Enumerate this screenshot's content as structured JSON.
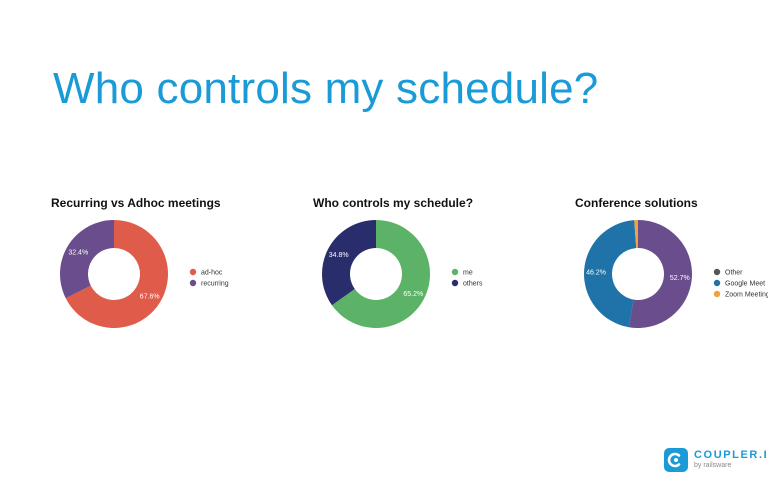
{
  "headline": "Who controls my schedule?",
  "chart_data": [
    {
      "type": "pie",
      "title": "Recurring vs Adhoc meetings",
      "donut": true,
      "legend_position": "right",
      "slices": [
        {
          "label": "ad-hoc",
          "value": 67.6,
          "display": "67.6%",
          "color": "#e05c4a"
        },
        {
          "label": "recurring",
          "value": 32.4,
          "display": "32.4%",
          "color": "#6a4d8c"
        }
      ]
    },
    {
      "type": "pie",
      "title": "Who controls my schedule?",
      "donut": true,
      "legend_position": "right",
      "slices": [
        {
          "label": "me",
          "value": 65.2,
          "display": "65.2%",
          "color": "#5cb367"
        },
        {
          "label": "others",
          "value": 34.8,
          "display": "34.8%",
          "color": "#2a2d6b"
        }
      ]
    },
    {
      "type": "pie",
      "title": "Conference solutions",
      "donut": true,
      "legend_position": "right",
      "slices": [
        {
          "label": "Other",
          "value": 52.7,
          "display": "52.7%",
          "color": "#6a4d8c"
        },
        {
          "label": "Google Meet",
          "value": 46.2,
          "display": "46.2%",
          "color": "#1f73a8"
        },
        {
          "label": "Zoom Meeting",
          "value": 1.1,
          "display": "",
          "color": "#f0a33a"
        }
      ]
    }
  ],
  "legend_swatch_colors": [
    [
      "#e05c4a",
      "#6a4d8c"
    ],
    [
      "#5cb367",
      "#2a2d6b"
    ],
    [
      "#555555",
      "#1f73a8",
      "#f0a33a"
    ]
  ],
  "logo": {
    "name": "COUPLER.IO",
    "sub": "by railsware",
    "color": "#1a9bd7",
    "icon": "coupler-logo-icon"
  }
}
